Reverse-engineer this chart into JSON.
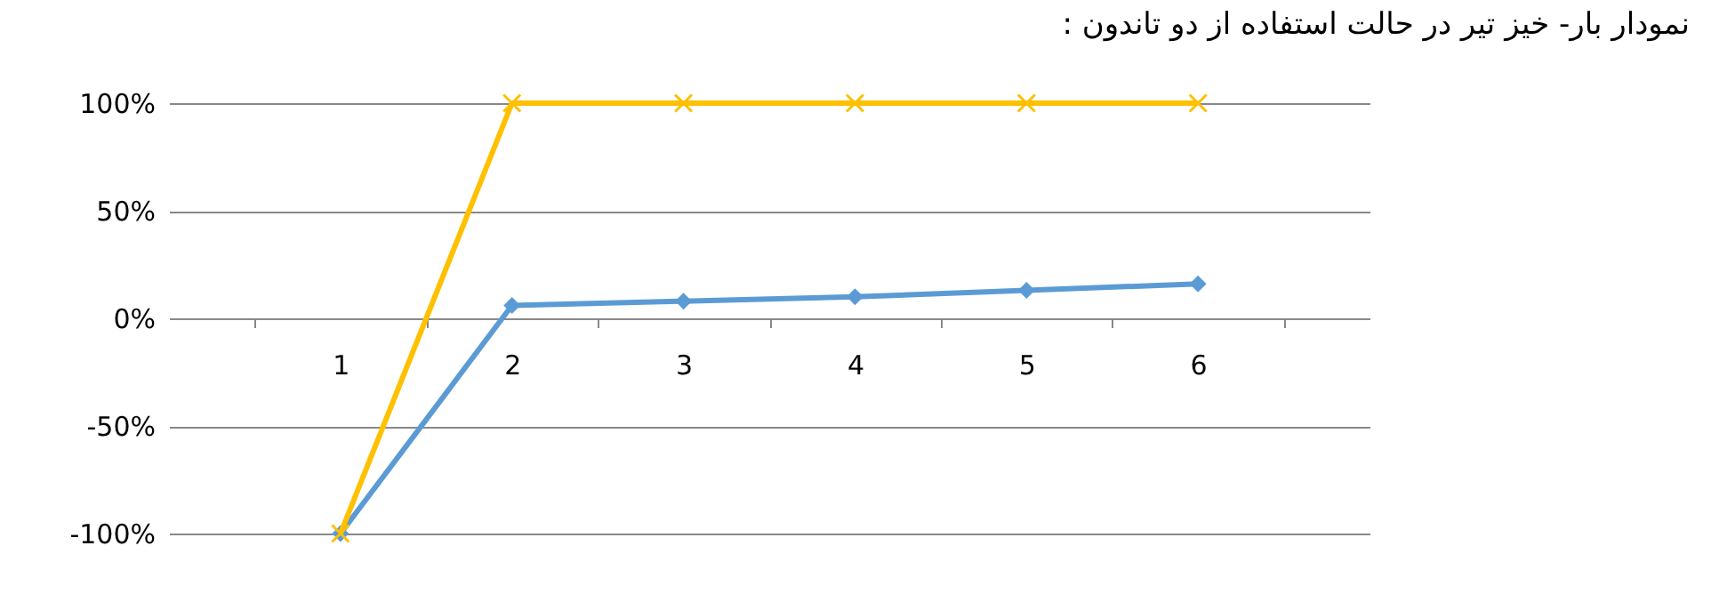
{
  "chart_data": {
    "type": "line",
    "title": "نمودار بار- خیز تیر در حالت استفاده از دو تاندون :",
    "categories": [
      "1",
      "2",
      "3",
      "4",
      "5",
      "6"
    ],
    "series": [
      {
        "color": "#5b9bd5",
        "marker": "diamond",
        "values": [
          -100,
          6,
          8,
          10,
          13,
          16
        ]
      },
      {
        "color": "#ffc000",
        "marker": "cross",
        "values": [
          -100,
          100,
          100,
          100,
          100,
          100
        ]
      }
    ],
    "ylim": [
      -100,
      100
    ],
    "yticks": [
      {
        "value": -100,
        "label": "-100%"
      },
      {
        "value": -50,
        "label": "-50%"
      },
      {
        "value": 0,
        "label": "0%"
      },
      {
        "value": 50,
        "label": "50%"
      },
      {
        "value": 100,
        "label": "100%"
      }
    ],
    "grid": "y",
    "line_style": "solid"
  }
}
